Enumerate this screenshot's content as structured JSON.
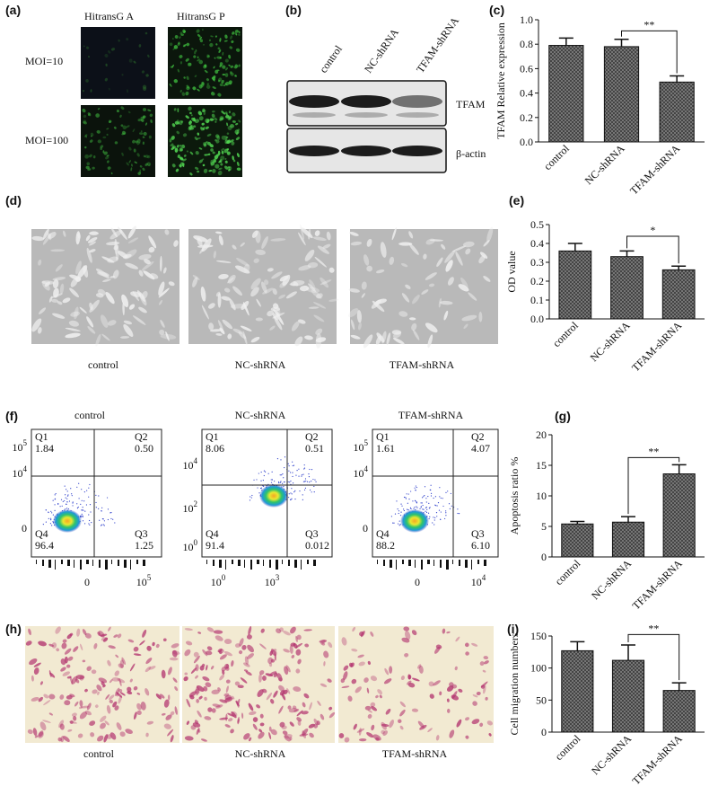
{
  "figure": {
    "a": {
      "label": "(a)",
      "columns": [
        "HitransG A",
        "HitransG P"
      ],
      "rows": [
        "MOI=10",
        "MOI=100"
      ]
    },
    "b": {
      "label": "(b)",
      "lanes": [
        "control",
        "NC-shRNA",
        "TFAM-shRNA"
      ],
      "bands": [
        "TFAM",
        "β-actin"
      ]
    },
    "d": {
      "label": "(d)",
      "captions": [
        "control",
        "NC-shRNA",
        "TFAM-shRNA"
      ]
    },
    "f": {
      "label": "(f)",
      "plots": [
        {
          "title": "control",
          "quadrants": [
            {
              "name": "Q1",
              "value": "1.84"
            },
            {
              "name": "Q2",
              "value": "0.50"
            },
            {
              "name": "Q3",
              "value": "1.25"
            },
            {
              "name": "Q4",
              "value": "96.4"
            }
          ],
          "yticks": [
            {
              "base": "10",
              "exp": "5"
            },
            {
              "base": "10",
              "exp": "4"
            },
            {
              "base": "0"
            }
          ],
          "xticks": [
            {
              "base": "0"
            },
            {
              "base": "10",
              "exp": "5"
            }
          ]
        },
        {
          "title": "NC-shRNA",
          "quadrants": [
            {
              "name": "Q1",
              "value": "8.06"
            },
            {
              "name": "Q2",
              "value": "0.51"
            },
            {
              "name": "Q3",
              "value": "0.012"
            },
            {
              "name": "Q4",
              "value": "91.4"
            }
          ],
          "yticks": [
            {
              "base": "10",
              "exp": "4"
            },
            {
              "base": "10",
              "exp": "2"
            },
            {
              "base": "10",
              "exp": "0"
            }
          ],
          "xticks": [
            {
              "base": "10",
              "exp": "0"
            },
            {
              "base": "10",
              "exp": "3"
            }
          ]
        },
        {
          "title": "TFAM-shRNA",
          "quadrants": [
            {
              "name": "Q1",
              "value": "1.61"
            },
            {
              "name": "Q2",
              "value": "4.07"
            },
            {
              "name": "Q3",
              "value": "6.10"
            },
            {
              "name": "Q4",
              "value": "88.2"
            }
          ],
          "yticks": [
            {
              "base": "10",
              "exp": "5"
            },
            {
              "base": "10",
              "exp": "4"
            },
            {
              "base": "0"
            }
          ],
          "xticks": [
            {
              "base": "0"
            },
            {
              "base": "10",
              "exp": "4"
            }
          ]
        }
      ]
    },
    "h": {
      "label": "(h)",
      "captions": [
        "control",
        "NC-shRNA",
        "TFAM-shRNA"
      ]
    }
  },
  "chart_data": [
    {
      "type": "bar",
      "panel": "(c)",
      "y_label": "TFAM  Relative expression",
      "categories": [
        "control",
        "NC-shRNA",
        "TFAM-shRNA"
      ],
      "values": [
        0.79,
        0.78,
        0.49
      ],
      "errors": [
        0.06,
        0.06,
        0.05
      ],
      "color": "#3a3a3a",
      "ylim": [
        0,
        1
      ],
      "yticks": [
        {
          "value": 0,
          "label": "0.0"
        },
        0.2,
        0.4,
        0.6,
        0.8,
        {
          "value": 1,
          "label": "1.0"
        }
      ],
      "significance": "**"
    },
    {
      "type": "bar",
      "panel": "(e)",
      "y_label": "OD value",
      "categories": [
        "control",
        "NC-shRNA",
        "TFAM-shRNA"
      ],
      "values": [
        0.36,
        0.33,
        0.26
      ],
      "errors": [
        0.04,
        0.03,
        0.02
      ],
      "color": "#3a3a3a",
      "ylim": [
        0,
        0.5
      ],
      "yticks": [
        {
          "value": 0,
          "label": "0.0"
        },
        0.1,
        0.2,
        0.3,
        0.4,
        0.5
      ],
      "significance": "*"
    },
    {
      "type": "bar",
      "panel": "(g)",
      "y_label": "Apoptosis ratio %",
      "categories": [
        "control",
        "NC-shRNA",
        "TFAM-shRNA"
      ],
      "values": [
        5.4,
        5.7,
        13.6
      ],
      "errors": [
        0.4,
        0.9,
        1.5
      ],
      "color": "#3a3a3a",
      "ylim": [
        0,
        20
      ],
      "yticks": [
        0,
        5,
        10,
        15,
        20
      ],
      "significance": "**"
    },
    {
      "type": "bar",
      "panel": "(i)",
      "y_label": "Cell migration numbers",
      "categories": [
        "control",
        "NC-shRNA",
        "TFAM-shRNA"
      ],
      "values": [
        127,
        112,
        65
      ],
      "errors": [
        14,
        24,
        12
      ],
      "color": "#3a3a3a",
      "ylim": [
        0,
        150
      ],
      "yticks": [
        0,
        50,
        100,
        150
      ],
      "significance": "**"
    }
  ]
}
